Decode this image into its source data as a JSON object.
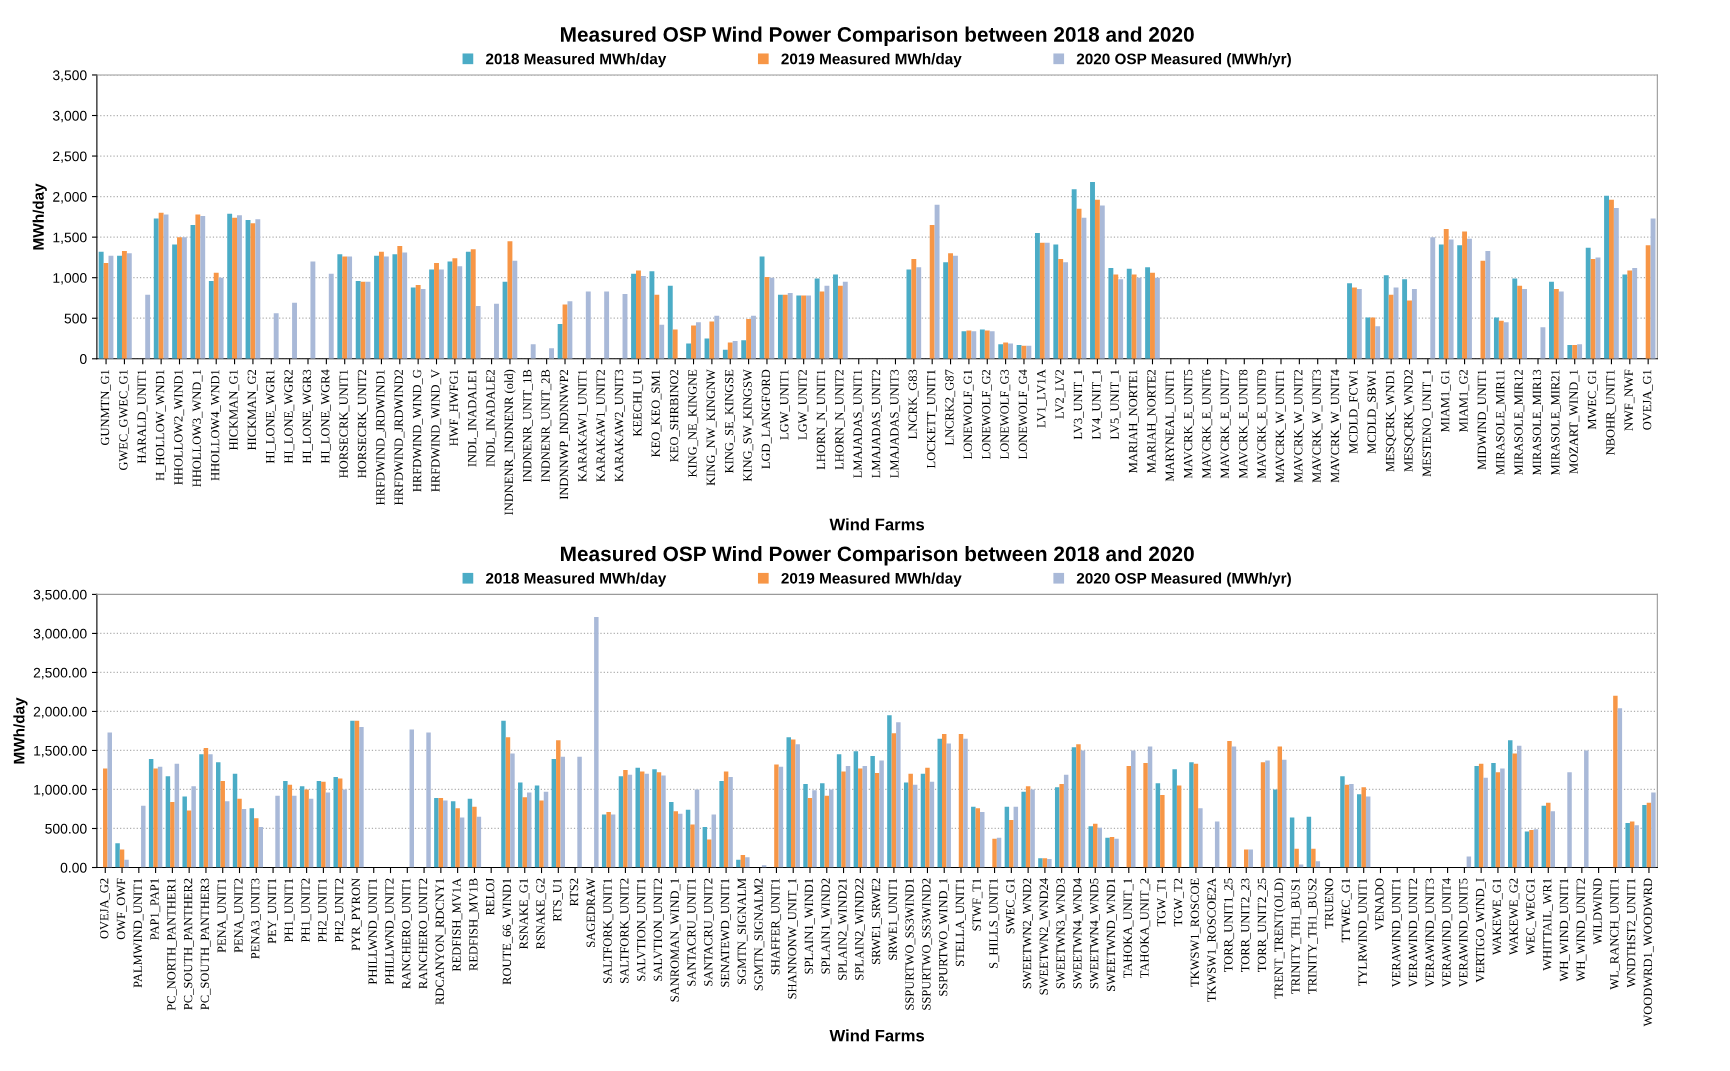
{
  "chart_data": [
    {
      "type": "bar",
      "title": "Measured OSP Wind Power Comparison between 2018 and 2020",
      "xlabel": "Wind Farms",
      "ylabel": "MWh/day",
      "legend": "top",
      "grid": "y",
      "ylim": [
        0,
        3500
      ],
      "yticks": [
        {
          "value": 0,
          "label": "0"
        },
        {
          "value": 500,
          "label": "500"
        },
        {
          "value": 1000,
          "label": "1,000"
        },
        {
          "value": 1500,
          "label": "1,500"
        },
        {
          "value": 2000,
          "label": "2,000"
        },
        {
          "value": 2500,
          "label": "2,500"
        },
        {
          "value": 3000,
          "label": "3,000"
        },
        {
          "value": 3500,
          "label": "3,500"
        }
      ],
      "categories": [
        "GUNMTN_G1",
        "GWEC_GWEC_G1",
        "HARALD_UNIT1",
        "H_HOLLOW_WND1",
        "HHOLLOW2_WIND1",
        "HHOLLOW3_WND_1",
        "HHOLLOW4_WND1",
        "HICKMAN_G1",
        "HICKMAN_G2",
        "HI_LONE_WGR1",
        "HI_LONE_WGR2",
        "HI_LONE_WGR3",
        "HI_LONE_WGR4",
        "HORSECRK_UNIT1",
        "HORSECRK_UNIT2",
        "HRFDWIND_JRDWIND1",
        "HRFDWIND_JRDWIND2",
        "HRFDWIND_WIND_G",
        "HRFDWIND_WIND_V",
        "HWF_HWFG1",
        "INDL_INADALE1",
        "INDL_INADALE2",
        "INDNENR_INDNENR (old)",
        "INDNENR_UNIT_1B",
        "INDNENR_UNIT_2B",
        "INDNNWP_INDNNWP2",
        "KARAKAW1_UNIT1",
        "KARAKAW1_UNIT2",
        "KARAKAW2_UNIT3",
        "KEECHI_U1",
        "KEO_KEO_SM1",
        "KEO_SHRBINO2",
        "KING_NE_KINGNE",
        "KING_NW_KINGNW",
        "KING_SE_KINGSE",
        "KING_SW_KINGSW",
        "LGD_LANGFORD",
        "LGW_UNIT1",
        "LGW_UNIT2",
        "LHORN_N_UNIT1",
        "LHORN_N_UNIT2",
        "LMAJADAS_UNIT1",
        "LMAJADAS_UNIT2",
        "LMAJADAS_UNIT3",
        "LNCRK_G83",
        "LOCKETT_UNIT1",
        "LNCRK2_G87",
        "LONEWOLF_G1",
        "LONEWOLF_G2",
        "LONEWOLF_G3",
        "LONEWOLF_G4",
        "LV1_LV1A",
        "LV2_LV2",
        "LV3_UNIT_1",
        "LV4_UNIT_1",
        "LV5_UNIT_1",
        "MARIAH_NORTE1",
        "MARIAH_NORTE2",
        "MARYNEAL_UNIT1",
        "MAVCRK_E_UNIT5",
        "MAVCRK_E_UNIT6",
        "MAVCRK_E_UNIT7",
        "MAVCRK_E_UNIT8",
        "MAVCRK_E_UNIT9",
        "MAVCRK_W_UNIT1",
        "MAVCRK_W_UNIT2",
        "MAVCRK_W_UNIT3",
        "MAVCRK_W_UNIT4",
        "MCDLD_FCW1",
        "MCDLD_SBW1",
        "MESQCRK_WND1",
        "MESQCRK_WND2",
        "MESTENO_UNIT_1",
        "MIAM1_G1",
        "MIAM1_G2",
        "MIDWIND_UNIT1",
        "MIRASOLE_MIR11",
        "MIRASOLE_MIR12",
        "MIRASOLE_MIR13",
        "MIRASOLE_MIR21",
        "MOZART_WIND_1",
        "MWEC_G1",
        "NBOHR_UNIT1",
        "NWF_NWF",
        "OVEJA_G1"
      ],
      "series": [
        {
          "name": "2018 Measured MWh/day",
          "color": "#4bacc6",
          "values": [
            1320,
            1270,
            null,
            1730,
            1410,
            1650,
            960,
            1790,
            1710,
            null,
            null,
            null,
            null,
            1290,
            960,
            1270,
            1290,
            880,
            1100,
            1200,
            1320,
            null,
            950,
            null,
            null,
            430,
            null,
            null,
            null,
            1050,
            1080,
            900,
            190,
            250,
            110,
            230,
            1260,
            790,
            780,
            990,
            1040,
            null,
            null,
            null,
            1100,
            null,
            1190,
            340,
            360,
            180,
            170,
            1550,
            1410,
            2090,
            2180,
            1120,
            1110,
            1130,
            null,
            null,
            null,
            null,
            null,
            null,
            null,
            null,
            null,
            null,
            930,
            510,
            1030,
            980,
            null,
            1410,
            1400,
            null,
            510,
            990,
            null,
            950,
            170,
            1370,
            2010,
            1040,
            null
          ]
        },
        {
          "name": "2019 Measured MWh/day",
          "color": "#f79646",
          "values": [
            1180,
            1330,
            null,
            1800,
            1500,
            1780,
            1060,
            1740,
            1670,
            null,
            null,
            null,
            null,
            1260,
            950,
            1320,
            1390,
            910,
            1180,
            1240,
            1350,
            null,
            1450,
            null,
            null,
            670,
            null,
            null,
            null,
            1090,
            790,
            360,
            410,
            460,
            200,
            490,
            1010,
            790,
            780,
            830,
            900,
            null,
            null,
            null,
            1230,
            1650,
            1300,
            350,
            350,
            200,
            160,
            1430,
            1230,
            1850,
            1960,
            1040,
            1040,
            1060,
            null,
            null,
            null,
            null,
            null,
            null,
            null,
            null,
            null,
            null,
            880,
            510,
            790,
            720,
            null,
            1600,
            1570,
            1210,
            470,
            900,
            null,
            860,
            170,
            1230,
            1960,
            1090,
            1400
          ]
        },
        {
          "name": "2020 OSP Measured (MWh/yr)",
          "color": "#a9b9d8",
          "values": [
            1270,
            1300,
            790,
            1780,
            1500,
            1760,
            1000,
            1770,
            1720,
            560,
            690,
            1200,
            1050,
            1260,
            950,
            1260,
            1310,
            860,
            1100,
            1140,
            650,
            680,
            1210,
            180,
            130,
            710,
            830,
            830,
            800,
            1020,
            420,
            null,
            450,
            530,
            220,
            530,
            1000,
            810,
            780,
            900,
            950,
            null,
            null,
            null,
            1130,
            1900,
            1270,
            340,
            340,
            190,
            160,
            1430,
            1190,
            1740,
            1890,
            980,
            1000,
            1000,
            null,
            null,
            null,
            null,
            null,
            null,
            null,
            null,
            null,
            null,
            860,
            400,
            880,
            860,
            1500,
            1470,
            1480,
            1330,
            450,
            860,
            390,
            830,
            180,
            1250,
            1860,
            1120,
            1730
          ]
        }
      ]
    },
    {
      "type": "bar",
      "title": "Measured OSP Wind Power Comparison between 2018 and 2020",
      "xlabel": "Wind Farms",
      "ylabel": "MWh/day",
      "legend": "top",
      "grid": "y",
      "ylim": [
        0,
        3500
      ],
      "yticks": [
        {
          "value": 0,
          "label": "0.00"
        },
        {
          "value": 500,
          "label": "500.00"
        },
        {
          "value": 1000,
          "label": "1,000.00"
        },
        {
          "value": 1500,
          "label": "1,500.00"
        },
        {
          "value": 2000,
          "label": "2,000.00"
        },
        {
          "value": 2500,
          "label": "2,500.00"
        },
        {
          "value": 3000,
          "label": "3,000.00"
        },
        {
          "value": 3500,
          "label": "3,500.00"
        }
      ],
      "categories": [
        "OVEJA_G2",
        "OWF_OWF",
        "PALMWIND_UNIT1",
        "PAP1_PAP1",
        "PC_NORTH_PANTHER1",
        "PC_SOUTH_PANTHER2",
        "PC_SOUTH_PANTHER3",
        "PENA_UNIT1",
        "PENA_UNIT2",
        "PENA3_UNIT3",
        "PEY_UNIT1",
        "PH1_UNIT1",
        "PH1_UNIT2",
        "PH2_UNIT1",
        "PH2_UNIT2",
        "PYR_PYRON",
        "PHILLWND_UNIT1",
        "PHILLWND_UNIT2",
        "RANCHERO_UNIT1",
        "RANCHERO_UNIT2",
        "RDCANYON_RDCNY1",
        "REDFISH_MV1A",
        "REDFISH_MV1B",
        "RELOJ",
        "ROUTE_66_WIND1",
        "RSNAKE_G1",
        "RSNAKE_G2",
        "RTS_U1",
        "RTS2",
        "SAGEDRAW",
        "SALTFORK_UNIT1",
        "SALTFORK_UNIT2",
        "SALVTION_UNIT1",
        "SALVTION_UNIT2",
        "SANROMAN_WIND_1",
        "SANTACRU_UNIT1",
        "SANTACRU_UNIT2",
        "SENATEWD_UNIT1",
        "SGMTN_SIGNALM",
        "SGMTN_SIGNALM2",
        "SHAFFER_UNIT1",
        "SHANNONW_UNIT_1",
        "SPLAIN1_WIND1",
        "SPLAIN1_WIND2",
        "SPLAIN2_WIND21",
        "SPLAIN2_WIND22",
        "SRWE1_SRWE2",
        "SRWE1_UNIT1",
        "SSPURTWO_SS3WIND1",
        "SSPURTWO_SS3WIND2",
        "SSPURTWO_WIND_1",
        "STELLA_UNIT1",
        "STWF_T1",
        "S_HILLS_UNIT1",
        "SWEC_G1",
        "SWEETWN2_WND2",
        "SWEETWN2_WND24",
        "SWEETWN3_WND3",
        "SWEETWN4_WND4",
        "SWEETWN4_WND5",
        "SWEETWND_WND1",
        "TAHOKA_UNIT_1",
        "TAHOKA_UNIT_2",
        "TGW_T1",
        "TGW_T2",
        "TKWSW1_ROSCOE",
        "TKWSW1_ROSCOE2A",
        "TORR_UNIT1_25",
        "TORR_UNIT2_23",
        "TORR_UNIT2_25",
        "TRENT_TRENT(OLD)",
        "TRINITY_TH1_BUS1",
        "TRINITY_TH1_BUS2",
        "TRUENO",
        "TTWEC_G1",
        "TYLRWIND_UNIT1",
        "VENADO",
        "VERAWIND_UNIT1",
        "VERAWIND_UNIT2",
        "VERAWIND_UNIT3",
        "VERAWIND_UNIT4",
        "VERAWIND_UNIT5",
        "VERTIGO_WIND_I",
        "WAKEWE_G1",
        "WAKEWE_G2",
        "WEC_WECG1",
        "WHITTAIL_WR1",
        "WH_WIND_UNIT1",
        "WH_WIND_UNIT2",
        "WILDWIND",
        "WL_RANCH_UNIT1",
        "WNDTHST2_UNIT1",
        "WOODWRD1_WOODWRD"
      ],
      "series": [
        {
          "name": "2018 Measured MWh/day",
          "color": "#4bacc6",
          "values": [
            null,
            310,
            null,
            1390,
            1170,
            910,
            1450,
            1350,
            1200,
            760,
            null,
            1110,
            1040,
            1110,
            1160,
            1880,
            null,
            null,
            null,
            null,
            890,
            850,
            880,
            null,
            1880,
            1090,
            1050,
            1390,
            null,
            null,
            680,
            1170,
            1280,
            1260,
            840,
            740,
            520,
            1110,
            100,
            null,
            null,
            1670,
            1070,
            1080,
            1450,
            1490,
            1430,
            1950,
            1090,
            1200,
            1650,
            null,
            780,
            null,
            780,
            970,
            120,
            1030,
            1540,
            530,
            380,
            null,
            null,
            1080,
            1260,
            1350,
            null,
            null,
            null,
            null,
            1000,
            640,
            650,
            null,
            1170,
            940,
            null,
            null,
            null,
            null,
            null,
            null,
            1300,
            1340,
            1630,
            460,
            790,
            null,
            null,
            null,
            null,
            570,
            800
          ]
        },
        {
          "name": "2019 Measured MWh/day",
          "color": "#f79646",
          "values": [
            1270,
            230,
            null,
            1270,
            840,
            730,
            1530,
            1110,
            880,
            630,
            null,
            1060,
            1000,
            1100,
            1140,
            1880,
            null,
            null,
            null,
            null,
            890,
            760,
            780,
            null,
            1670,
            900,
            860,
            1630,
            null,
            null,
            710,
            1250,
            1230,
            1220,
            720,
            550,
            360,
            1230,
            160,
            null,
            1320,
            1640,
            890,
            920,
            1230,
            1270,
            1210,
            1720,
            1200,
            1280,
            1710,
            1710,
            760,
            370,
            610,
            1040,
            120,
            1070,
            1580,
            560,
            390,
            1300,
            1340,
            930,
            1050,
            1330,
            null,
            1620,
            230,
            1350,
            1550,
            240,
            240,
            null,
            1060,
            1030,
            null,
            null,
            null,
            null,
            null,
            null,
            1330,
            1220,
            1460,
            480,
            830,
            null,
            null,
            null,
            2200,
            590,
            830
          ]
        },
        {
          "name": "2020 OSP Measured (MWh/yr)",
          "color": "#a9b9d8",
          "values": [
            1730,
            100,
            790,
            1290,
            1330,
            1040,
            1450,
            850,
            750,
            520,
            920,
            920,
            880,
            960,
            1000,
            1800,
            null,
            null,
            1770,
            1730,
            860,
            640,
            650,
            null,
            1460,
            960,
            970,
            1420,
            1420,
            3210,
            680,
            1190,
            1200,
            1180,
            690,
            1000,
            680,
            1160,
            130,
            30,
            1290,
            1580,
            990,
            1000,
            1300,
            1300,
            1370,
            1860,
            1060,
            1100,
            1590,
            1650,
            710,
            380,
            780,
            1000,
            110,
            1190,
            1500,
            510,
            370,
            1500,
            1550,
            null,
            null,
            760,
            590,
            1550,
            230,
            1370,
            1380,
            40,
            80,
            null,
            1070,
            910,
            null,
            null,
            null,
            null,
            null,
            140,
            1150,
            1270,
            1560,
            490,
            720,
            1220,
            1500,
            null,
            2040,
            540,
            960
          ]
        }
      ]
    }
  ]
}
